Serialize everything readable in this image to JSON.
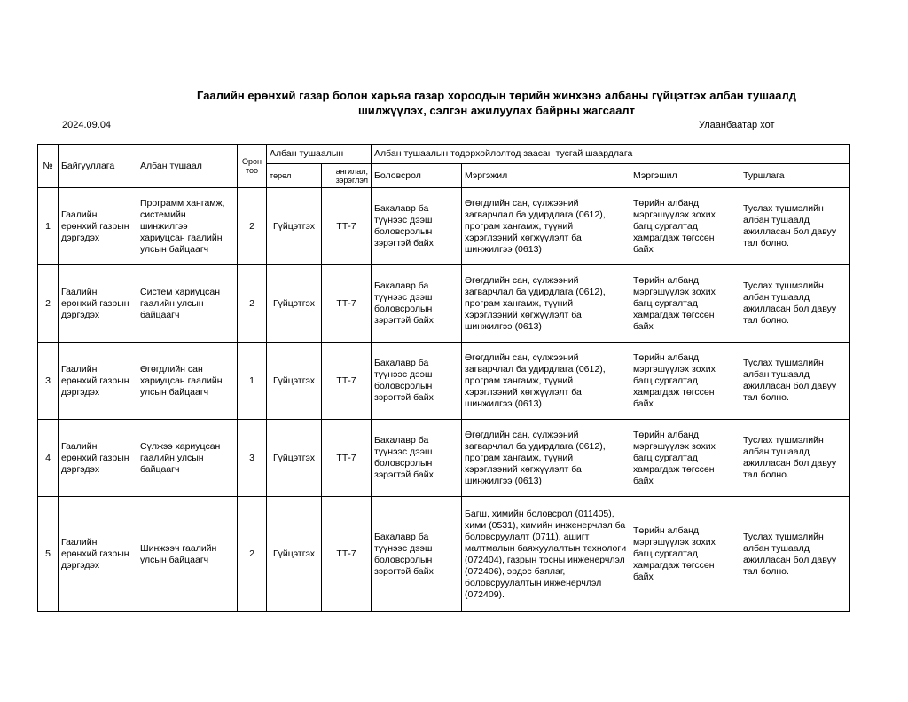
{
  "title_line1": "Гаалийн ерөнхий газар болон харьяа газар хороодын төрийн жинхэнэ албаны гүйцэтгэх албан тушаалд",
  "title_line2": "шилжүүлэх, сэлгэн ажилуулах байрны жагсаалт",
  "date": "2024.09.04",
  "city": "Улаанбаатар хот",
  "headers": {
    "no": "№",
    "org": "Байгууллага",
    "position": "Албан тушаал",
    "count": "Орон тоо",
    "pos_group": "Албан тушаалын",
    "type": "төрөл",
    "rank": "ангилал, зэрэглэл",
    "req_group": "Албан тушаалын тодорхойлолтод заасан тусгай шаардлага",
    "education": "Боловсрол",
    "profession": "Мэргэжил",
    "skill": "Мэргэшил",
    "experience": "Туршлага"
  },
  "rows": [
    {
      "no": "1",
      "org": "Гаалийн ерөнхий газрын дэргэдэх",
      "position": "Программ хангамж, системийн шинжилгээ хариуцсан гаалийн улсын байцаагч",
      "count": "2",
      "type": "Гүйцэтгэх",
      "rank": "ТТ-7",
      "education": "Бакалавр ба түүнээс дээш боловсролын зэрэгтэй байх",
      "profession": "Өгөгдлийн сан, сүлжээний загварчлал ба удирдлага (0612), програм хангамж, түүний хэрэглээний хөгжүүлэлт ба шинжилгээ (0613)",
      "skill": "Төрийн албанд мэргэшүүлэх зохих багц сургалтад хамрагдаж төгссөн байх",
      "experience": "Туслах түшмэлийн албан тушаалд ажилласан бол давуу тал болно."
    },
    {
      "no": "2",
      "org": "Гаалийн ерөнхий газрын дэргэдэх",
      "position": "Систем хариуцсан гаалийн улсын байцаагч",
      "count": "2",
      "type": "Гүйцэтгэх",
      "rank": "ТТ-7",
      "education": "Бакалавр ба түүнээс дээш боловсролын зэрэгтэй байх",
      "profession": "Өгөгдлийн сан, сүлжээний загварчлал ба удирдлага (0612), програм хангамж, түүний хэрэглээний хөгжүүлэлт ба шинжилгээ (0613)",
      "skill": "Төрийн албанд мэргэшүүлэх зохих багц сургалтад хамрагдаж төгссөн байх",
      "experience": "Туслах түшмэлийн албан тушаалд ажилласан бол давуу тал болно."
    },
    {
      "no": "3",
      "org": "Гаалийн ерөнхий газрын дэргэдэх",
      "position": "Өгөгдлийн сан хариуцсан гаалийн улсын байцаагч",
      "count": "1",
      "type": "Гүйцэтгэх",
      "rank": "ТТ-7",
      "education": "Бакалавр ба түүнээс дээш боловсролын зэрэгтэй байх",
      "profession": "Өгөгдлийн сан, сүлжээний загварчлал ба удирдлага (0612), програм хангамж, түүний хэрэглээний хөгжүүлэлт ба шинжилгээ (0613)",
      "skill": "Төрийн албанд мэргэшүүлэх зохих багц сургалтад хамрагдаж төгссөн байх",
      "experience": "Туслах түшмэлийн албан тушаалд ажилласан бол давуу тал болно."
    },
    {
      "no": "4",
      "org": "Гаалийн ерөнхий газрын дэргэдэх",
      "position": "Сүлжээ хариуцсан гаалийн улсын байцаагч",
      "count": "3",
      "type": "Гүйцэтгэх",
      "rank": "ТТ-7",
      "education": "Бакалавр ба түүнээс дээш боловсролын зэрэгтэй байх",
      "profession": "Өгөгдлийн сан, сүлжээний загварчлал ба удирдлага (0612), програм хангамж, түүний хэрэглээний хөгжүүлэлт ба шинжилгээ (0613)",
      "skill": "Төрийн албанд мэргэшүүлэх зохих багц сургалтад хамрагдаж төгссөн байх",
      "experience": "Туслах түшмэлийн албан тушаалд ажилласан бол давуу тал болно."
    },
    {
      "no": "5",
      "org": "Гаалийн ерөнхий газрын дэргэдэх",
      "position": "Шинжээч гаалийн улсын байцаагч",
      "count": "2",
      "type": "Гүйцэтгэх",
      "rank": "ТТ-7",
      "education": "Бакалавр ба түүнээс дээш боловсролын зэрэгтэй байх",
      "profession": "Багш, химийн боловсрол (011405), хими (0531), химийн инженерчлэл ба боловсруулалт (0711), ашигт малтмалын баяжуулалтын технологи (072404), газрын тосны инженерчлэл (072406), эрдэс баялаг, боловсруулалтын инженерчлэл (072409).",
      "skill": "Төрийн албанд мэргэшүүлэх зохих багц сургалтад хамрагдаж төгссөн байх",
      "experience": "Туслах түшмэлийн албан тушаалд ажилласан бол давуу тал болно."
    }
  ]
}
